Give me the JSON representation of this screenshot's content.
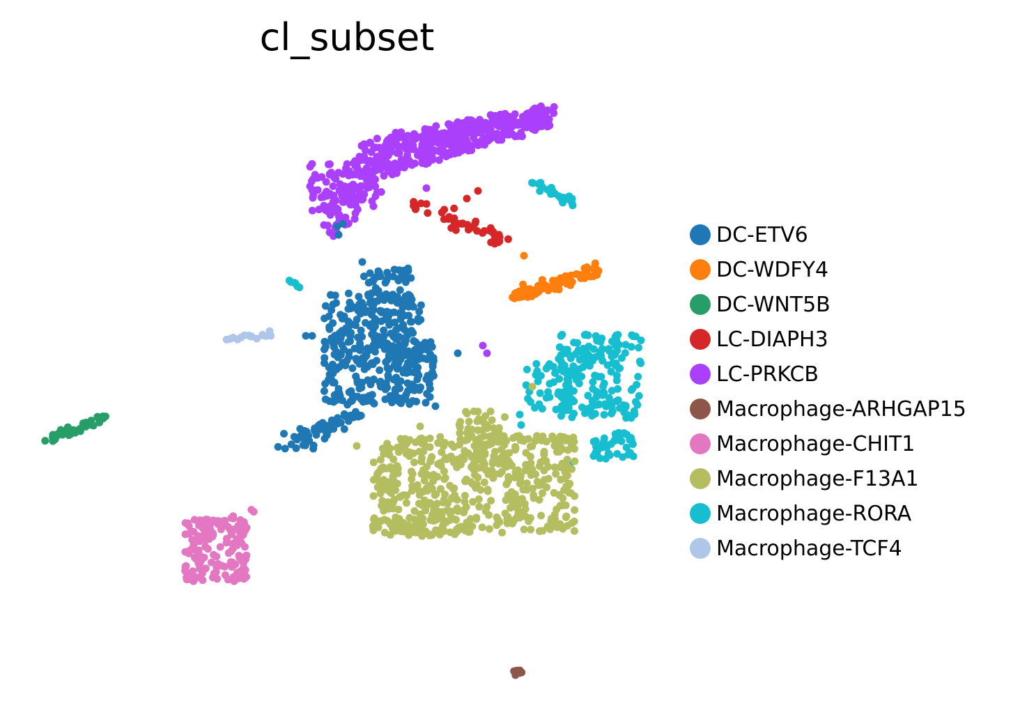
{
  "chart_data": {
    "type": "scatter",
    "title": "cl_subset",
    "xlabel": "",
    "ylabel": "",
    "grid": false,
    "axes_visible": false,
    "legend_position": "right",
    "series": [
      {
        "name": "DC-ETV6",
        "color": "#1f77b4"
      },
      {
        "name": "DC-WDFY4",
        "color": "#ff7f0e"
      },
      {
        "name": "DC-WNT5B",
        "color": "#279e68"
      },
      {
        "name": "LC-DIAPH3",
        "color": "#d62728"
      },
      {
        "name": "LC-PRKCB",
        "color": "#aa40fc"
      },
      {
        "name": "Macrophage-ARHGAP15",
        "color": "#8c564b"
      },
      {
        "name": "Macrophage-CHIT1",
        "color": "#e377c2"
      },
      {
        "name": "Macrophage-F13A1",
        "color": "#b5bd61"
      },
      {
        "name": "Macrophage-RORA",
        "color": "#17becf"
      },
      {
        "name": "Macrophage-TCF4",
        "color": "#aec7e8"
      }
    ]
  }
}
